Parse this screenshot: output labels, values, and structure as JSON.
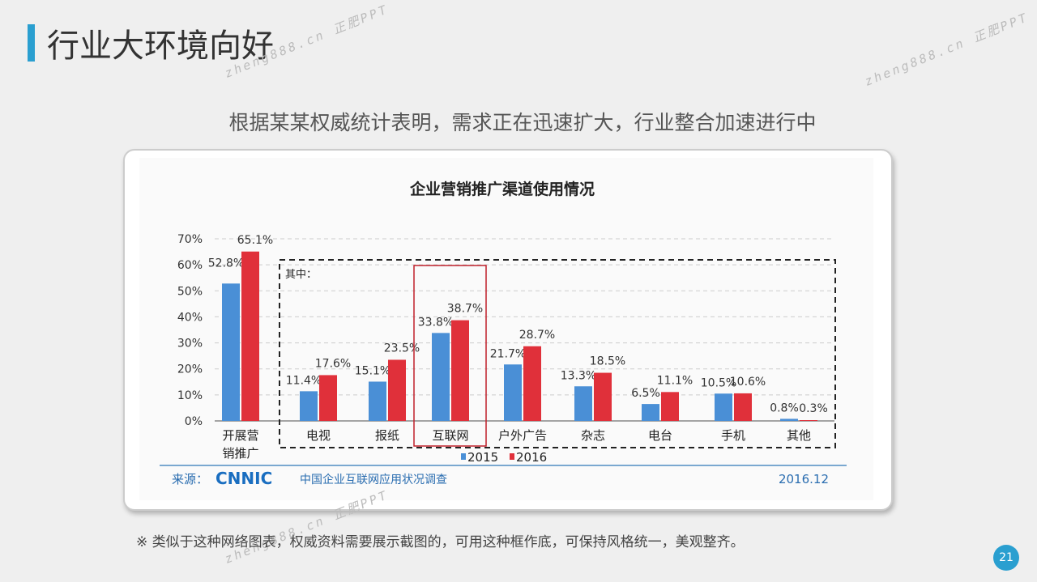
{
  "header": {
    "title": "行业大环境向好",
    "subtitle": "根据某某权威统计表明，需求正在迅速扩大，行业整合加速进行中"
  },
  "watermark": "zheng888.cn 正肥PPT",
  "note": "※ 类似于这种网络图表，权威资料需要展示截图的，可用这种框作底，可保持风格统一，美观整齐。",
  "page_number": "21",
  "chart_data": {
    "type": "bar",
    "title": "企业营销推广渠道使用情况",
    "categories": [
      "开展营\n销推广",
      "电视",
      "报纸",
      "互联网",
      "户外广告",
      "杂志",
      "电台",
      "手机",
      "其他"
    ],
    "series": [
      {
        "name": "2015",
        "color": "#4a8fd6",
        "values": [
          52.8,
          11.4,
          15.1,
          33.8,
          21.7,
          13.3,
          6.5,
          10.5,
          0.8
        ]
      },
      {
        "name": "2016",
        "color": "#e0303a",
        "values": [
          65.1,
          17.6,
          23.5,
          38.7,
          28.7,
          18.5,
          11.1,
          10.6,
          0.3
        ]
      }
    ],
    "yticks": [
      "0%",
      "10%",
      "20%",
      "30%",
      "40%",
      "50%",
      "60%",
      "70%"
    ],
    "ylim": [
      0,
      70
    ],
    "annotation": "其中：",
    "highlight": "互联网",
    "source_label": "来源：",
    "source_logo": "CNNIC",
    "source_text": "中国企业互联网应用状况调查",
    "date": "2016.12"
  }
}
